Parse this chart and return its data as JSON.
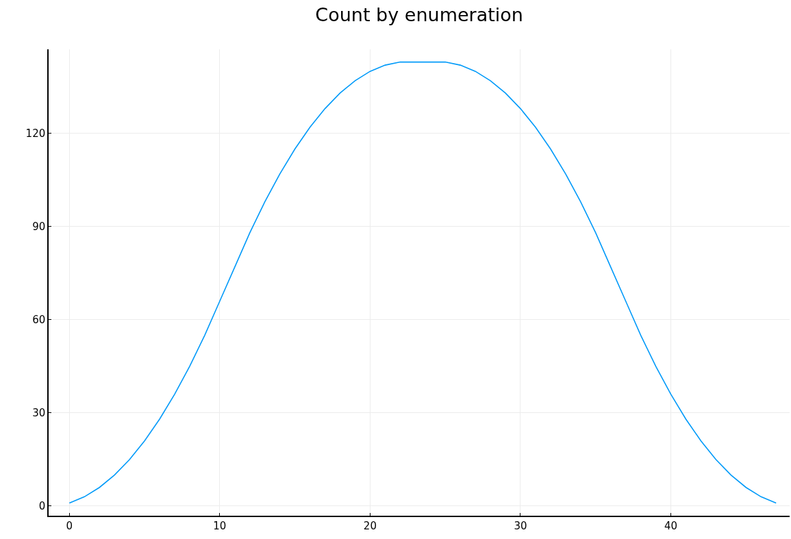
{
  "chart_data": {
    "type": "line",
    "title": "Count by enumeration",
    "x": [
      0,
      1,
      2,
      3,
      4,
      5,
      6,
      7,
      8,
      9,
      10,
      11,
      12,
      13,
      14,
      15,
      16,
      17,
      18,
      19,
      20,
      21,
      22,
      23,
      24,
      25,
      26,
      27,
      28,
      29,
      30,
      31,
      32,
      33,
      34,
      35,
      36,
      37,
      38,
      39,
      40,
      41,
      42,
      43,
      44,
      45,
      46,
      47
    ],
    "series": [
      {
        "color": "#009af9",
        "values": [
          1,
          3,
          6,
          10,
          15,
          21,
          28,
          36,
          45,
          55,
          66,
          77,
          88,
          98,
          107,
          115,
          122,
          128,
          133,
          137,
          140,
          142,
          143,
          143,
          143,
          143,
          142,
          140,
          137,
          133,
          128,
          122,
          115,
          107,
          98,
          88,
          77,
          66,
          55,
          45,
          36,
          28,
          21,
          15,
          10,
          6,
          3,
          1
        ]
      }
    ],
    "xlim": [
      -1.38,
      47.9
    ],
    "ylim": [
      -3.1,
      147.1
    ],
    "xticks": [
      0,
      10,
      20,
      30,
      40
    ],
    "yticks": [
      0,
      30,
      60,
      90,
      120
    ],
    "grid": true,
    "marker": "none",
    "line_style": "solid"
  }
}
